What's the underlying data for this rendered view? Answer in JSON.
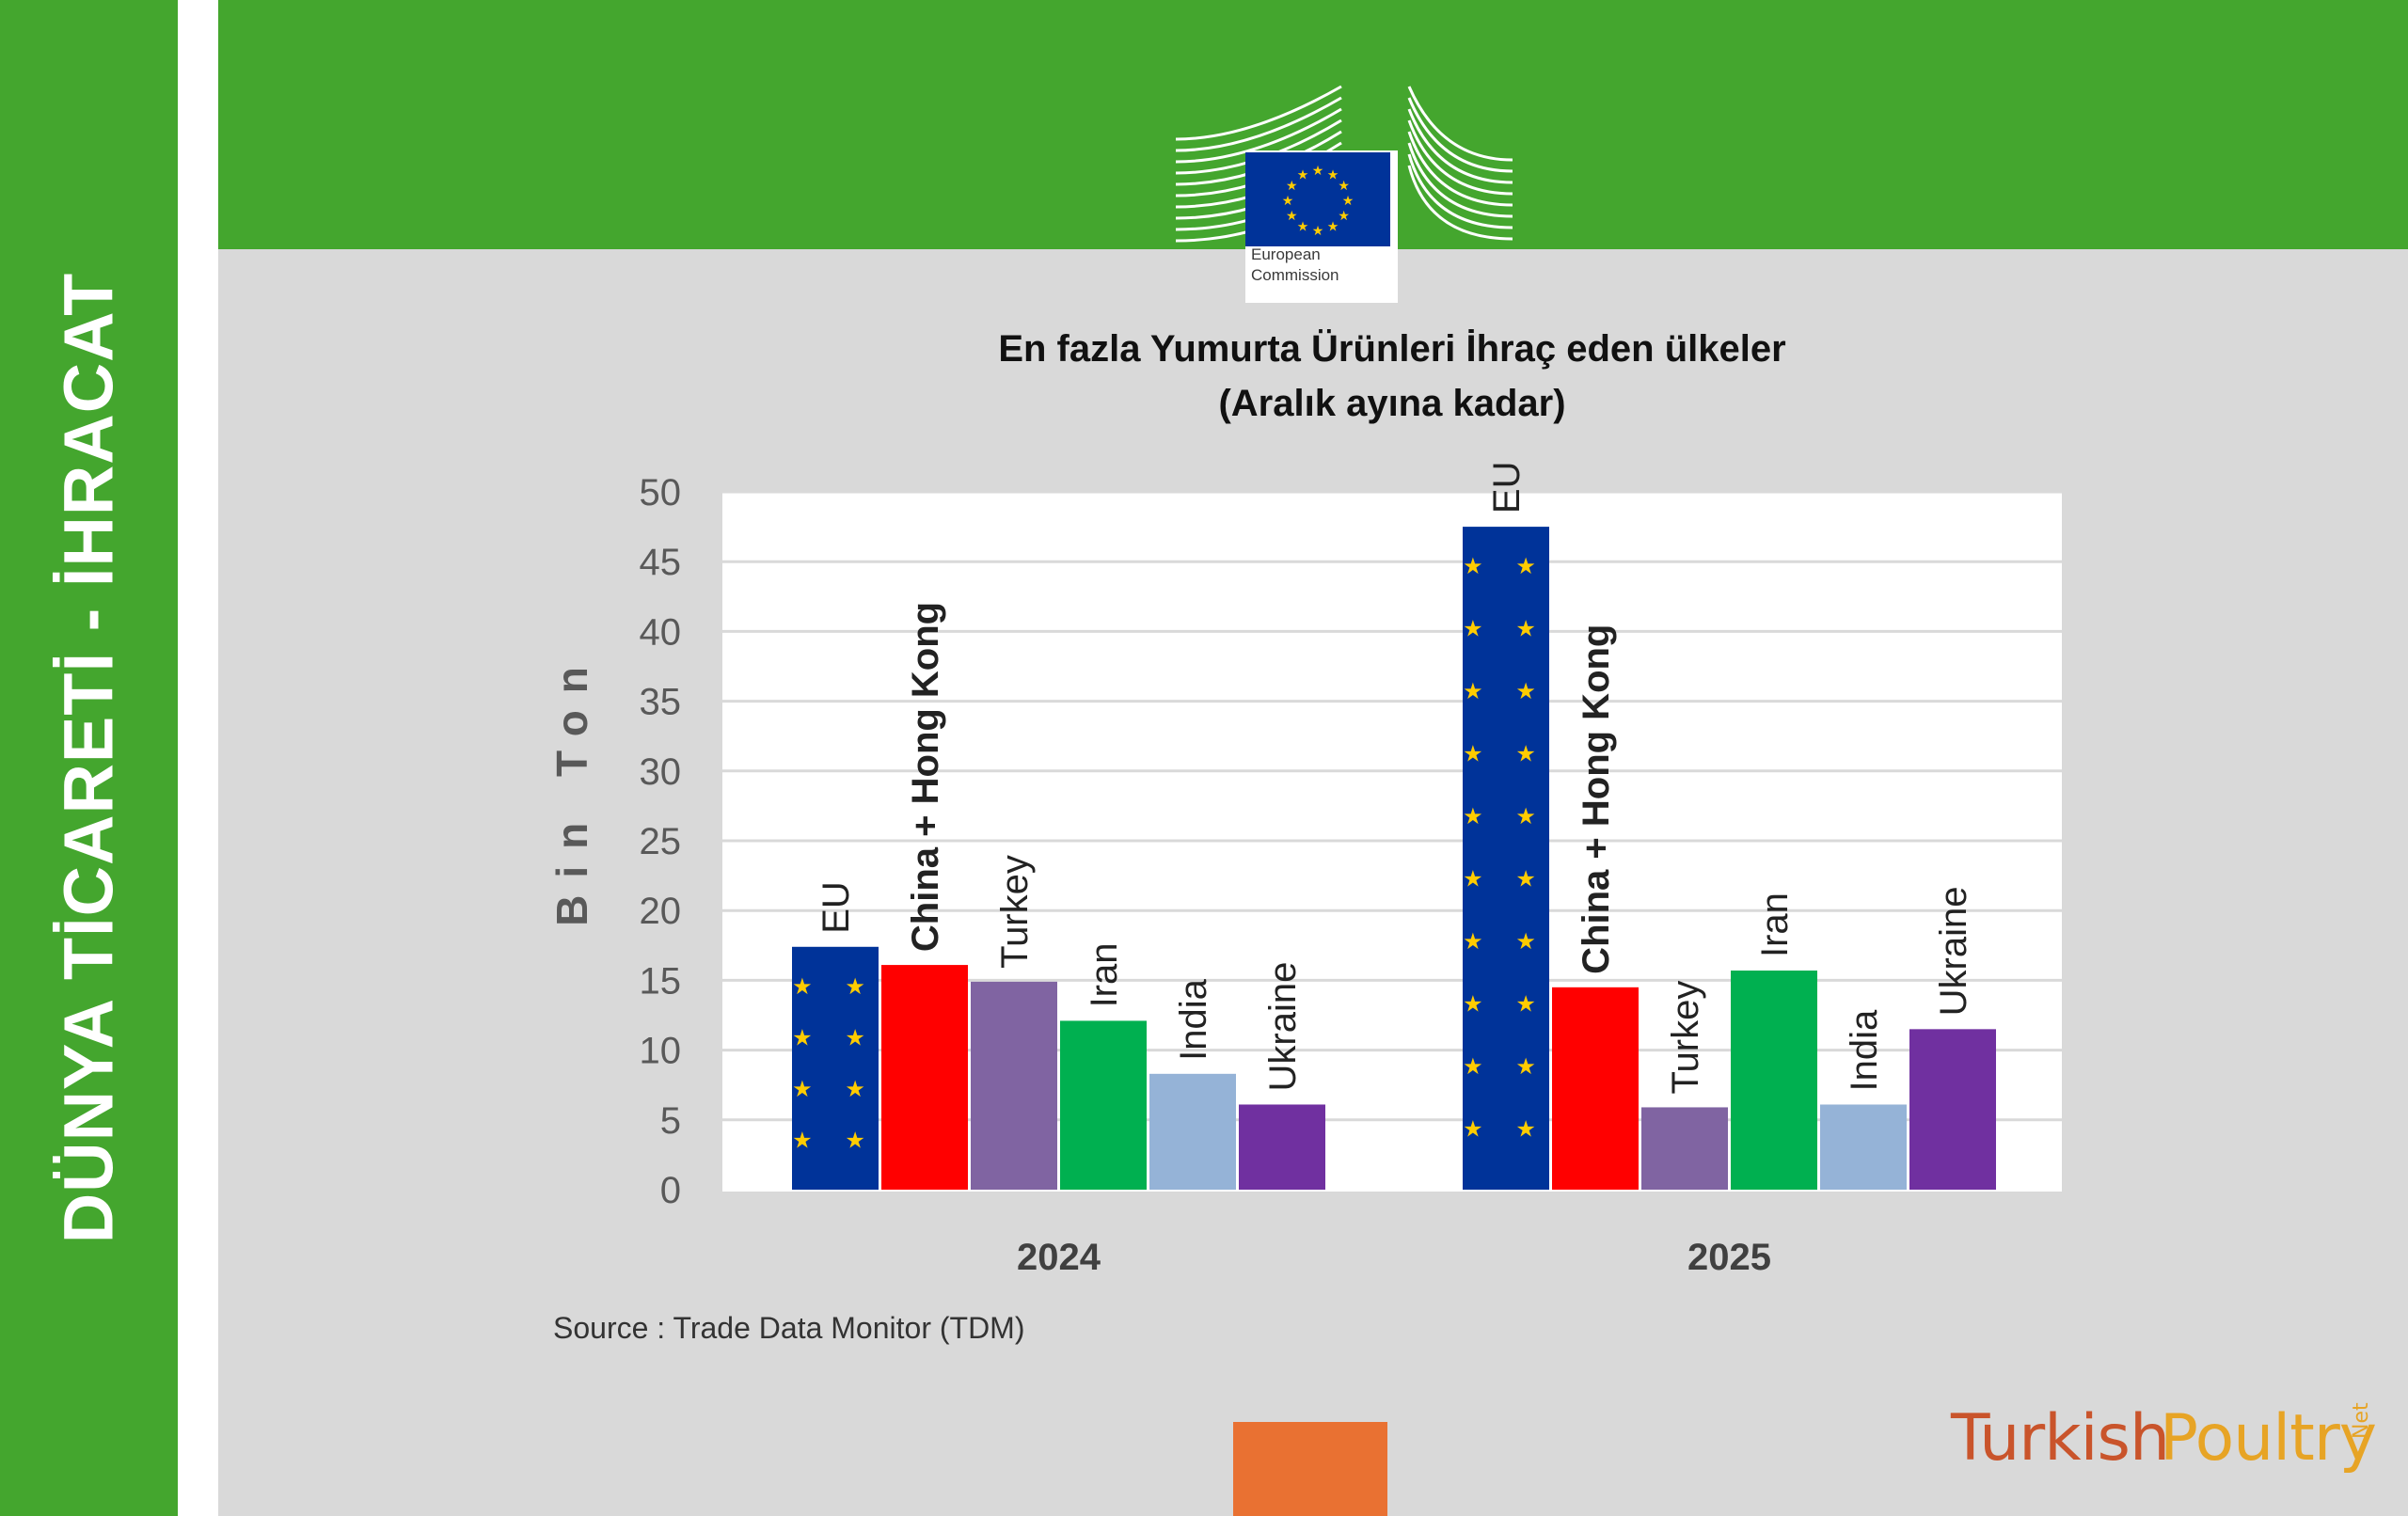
{
  "sidebar": {
    "title": "DÜNYA TİCARETİ - İHRACAT"
  },
  "logo": {
    "line1": "European",
    "line2": "Commission"
  },
  "chart_data": {
    "type": "bar",
    "title": "En fazla Yumurta Ürünleri İhraç eden ülkeler",
    "subtitle": "(Aralık ayına kadar)",
    "ylabel": "Bin Ton",
    "xlabel": "",
    "ylim": [
      0,
      50
    ],
    "yticks": [
      0,
      5,
      10,
      15,
      20,
      25,
      30,
      35,
      40,
      45,
      50
    ],
    "grid": true,
    "legend": "none",
    "categories": [
      "2024",
      "2025"
    ],
    "series": [
      {
        "name": "EU",
        "color": "#003399",
        "values": [
          17.4,
          47.5
        ]
      },
      {
        "name": "China + Hong Kong",
        "color": "#ff0000",
        "values": [
          16.1,
          14.5
        ]
      },
      {
        "name": "Turkey",
        "color": "#8064a2",
        "values": [
          14.9,
          5.9
        ]
      },
      {
        "name": "Iran",
        "color": "#00b050",
        "values": [
          12.1,
          15.7
        ]
      },
      {
        "name": "India",
        "color": "#95b3d7",
        "values": [
          8.3,
          6.1
        ]
      },
      {
        "name": "Ukraine",
        "color": "#7030a0",
        "values": [
          6.1,
          11.5
        ]
      }
    ]
  },
  "source": "Source : Trade Data Monitor (TDM)",
  "brand": {
    "part1": "Turkish",
    "part2": "Poultry",
    "part3": "Net"
  },
  "colors": {
    "green": "#44a62e",
    "background": "#d9d9d9",
    "plot_background": "#ffffff",
    "gridline": "#d9d9d9",
    "eu_star": "#ffcc00",
    "orange": "#e97132"
  }
}
